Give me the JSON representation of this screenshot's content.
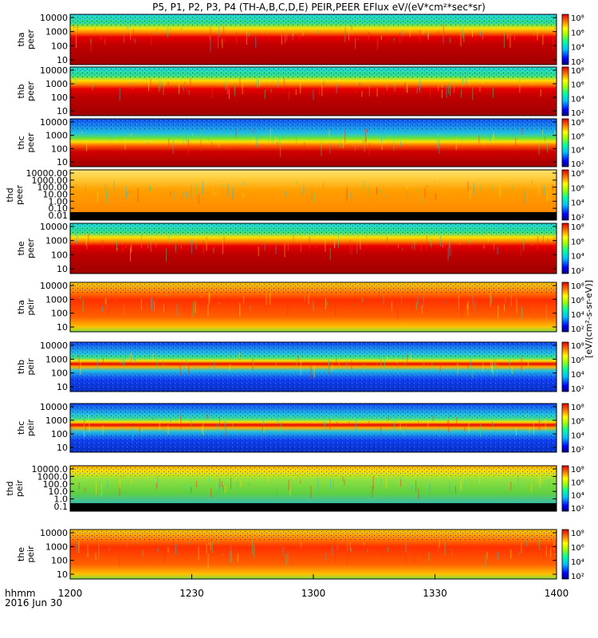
{
  "title": "P5, P1, P2, P3, P4 (TH-A,B,C,D,E) PEIR,PEER EFlux eV/(eV*cm²*sec*sr)",
  "colorbar_label": "[eV/(cm²-s-sr-eV)]",
  "colorbar_ticks_a": [
    "10²",
    "10⁴",
    "10⁶",
    "10⁸"
  ],
  "colorbar_ticks_b": [
    "10²",
    "10⁴",
    "10⁶",
    "10⁸"
  ],
  "colors": {
    "dark_red": "#a00000",
    "red": "#e80000",
    "orange": "#ff8000",
    "yellow": "#ffe000",
    "green": "#40d040",
    "cyan": "#20e0e0",
    "blue": "#1040f0",
    "black": "#000000"
  },
  "chart_data": {
    "type": "heatmap",
    "x_axis": {
      "ticks": [
        "1200",
        "1230",
        "1300",
        "1330",
        "1400"
      ],
      "label_line1": "hhmm",
      "label_line2": "2016 Jun 30",
      "range": [
        "1200",
        "1400"
      ]
    },
    "panels": [
      {
        "probe": "tha",
        "instrument": "peer",
        "yticks": [
          "10",
          "100",
          "1000",
          "10000"
        ]
      },
      {
        "probe": "thb",
        "instrument": "peer",
        "yticks": [
          "10",
          "100",
          "1000",
          "10000"
        ]
      },
      {
        "probe": "thc",
        "instrument": "peer",
        "yticks": [
          "10",
          "100",
          "1000",
          "10000"
        ]
      },
      {
        "probe": "thd",
        "instrument": "peer",
        "yticks": [
          "0.01",
          "0.10",
          "1.00",
          "10.00",
          "100.00",
          "1000.00",
          "10000.00"
        ]
      },
      {
        "probe": "the",
        "instrument": "peer",
        "yticks": [
          "10",
          "100",
          "1000",
          "10000"
        ]
      },
      {
        "probe": "tha",
        "instrument": "peir",
        "yticks": [
          "10",
          "100",
          "1000",
          "10000"
        ]
      },
      {
        "probe": "thb",
        "instrument": "peir",
        "yticks": [
          "10",
          "100",
          "1000",
          "10000"
        ]
      },
      {
        "probe": "thc",
        "instrument": "peir",
        "yticks": [
          "10",
          "100",
          "1000",
          "10000"
        ]
      },
      {
        "probe": "thd",
        "instrument": "peir",
        "yticks": [
          "0.1",
          "1.0",
          "10.0",
          "100.0",
          "1000.0",
          "10000.0"
        ]
      },
      {
        "probe": "the",
        "instrument": "peir",
        "yticks": [
          "10",
          "100",
          "1000",
          "10000"
        ]
      }
    ]
  }
}
